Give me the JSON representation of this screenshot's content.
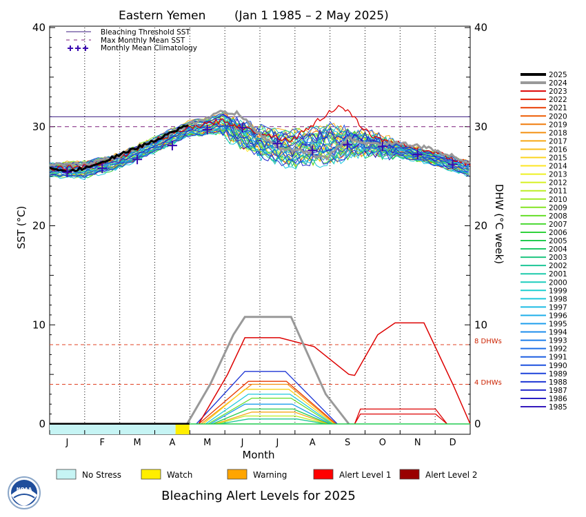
{
  "title_region": "Eastern Yemen",
  "title_range": "(Jan 1 1985 – 2 May 2025)",
  "y_left_label": "SST (°C)",
  "y_right_label": "DHW (°C week)",
  "x_label": "Month",
  "subtitle": "Bleaching Alert Levels for 2025",
  "logo_text": "NOAA",
  "legend_top": [
    {
      "label": "Bleaching Threshold SST",
      "color": "#3a1a80",
      "style": "solid"
    },
    {
      "label": "Max Monthly Mean SST",
      "color": "#7a1a7a",
      "style": "dashed"
    },
    {
      "label": "Monthly Mean Climatology",
      "color": "#3a0ab0",
      "style": "plus"
    }
  ],
  "dhw_labels": [
    "8 DHWs",
    "4 DHWs"
  ],
  "alert_key": [
    {
      "label": "No Stress",
      "color": "#c6f4f4"
    },
    {
      "label": "Watch",
      "color": "#ffee00"
    },
    {
      "label": "Warning",
      "color": "#ffa500"
    },
    {
      "label": "Alert Level 1",
      "color": "#ff0000"
    },
    {
      "label": "Alert Level 2",
      "color": "#990000"
    }
  ],
  "year_legend": [
    {
      "year": "2025",
      "color": "#000000"
    },
    {
      "year": "2024",
      "color": "#999999"
    },
    {
      "year": "2023",
      "color": "#dd0000"
    },
    {
      "year": "2022",
      "color": "#e21a00"
    },
    {
      "year": "2021",
      "color": "#e83a00"
    },
    {
      "year": "2020",
      "color": "#ee5a00"
    },
    {
      "year": "2019",
      "color": "#f07a0a"
    },
    {
      "year": "2018",
      "color": "#f49010"
    },
    {
      "year": "2017",
      "color": "#f7a814"
    },
    {
      "year": "2016",
      "color": "#f9be18"
    },
    {
      "year": "2015",
      "color": "#fbd31c"
    },
    {
      "year": "2014",
      "color": "#fce620"
    },
    {
      "year": "2013",
      "color": "#eef020"
    },
    {
      "year": "2012",
      "color": "#d6f020"
    },
    {
      "year": "2011",
      "color": "#bbee22"
    },
    {
      "year": "2010",
      "color": "#9fea22"
    },
    {
      "year": "2009",
      "color": "#82e422"
    },
    {
      "year": "2008",
      "color": "#64de26"
    },
    {
      "year": "2007",
      "color": "#48d830"
    },
    {
      "year": "2006",
      "color": "#30d23c"
    },
    {
      "year": "2005",
      "color": "#22cc50"
    },
    {
      "year": "2004",
      "color": "#1ec866"
    },
    {
      "year": "2003",
      "color": "#1cc47e"
    },
    {
      "year": "2002",
      "color": "#1cc696"
    },
    {
      "year": "2001",
      "color": "#1ccaaa"
    },
    {
      "year": "2000",
      "color": "#1ccdbe"
    },
    {
      "year": "1999",
      "color": "#1ccfd0"
    },
    {
      "year": "1998",
      "color": "#1cc8dc"
    },
    {
      "year": "1997",
      "color": "#1cbce4"
    },
    {
      "year": "1996",
      "color": "#1caeea"
    },
    {
      "year": "1995",
      "color": "#1c9eec"
    },
    {
      "year": "1994",
      "color": "#1c8eec"
    },
    {
      "year": "1993",
      "color": "#1c7eea"
    },
    {
      "year": "1992",
      "color": "#1c6ee6"
    },
    {
      "year": "1991",
      "color": "#1c5ee2"
    },
    {
      "year": "1990",
      "color": "#1c50de"
    },
    {
      "year": "1989",
      "color": "#1c42da"
    },
    {
      "year": "1988",
      "color": "#1c34d4"
    },
    {
      "year": "1987",
      "color": "#2228cc"
    },
    {
      "year": "1986",
      "color": "#2a20c4"
    },
    {
      "year": "1985",
      "color": "#3418bc"
    }
  ],
  "chart_data": {
    "type": "line",
    "title": "Eastern Yemen (Jan 1 1985 – 2 May 2025)",
    "xlabel": "Month",
    "ylabel": "SST (°C)",
    "y2label": "DHW (°C week)",
    "x_categories": [
      "J",
      "F",
      "M",
      "A",
      "M",
      "J",
      "J",
      "A",
      "S",
      "O",
      "N",
      "D"
    ],
    "ylim": [
      0,
      40
    ],
    "y2lim": [
      0,
      40
    ],
    "yticks": [
      0,
      10,
      20,
      30,
      40
    ],
    "grid": "vertical dotted at month boundaries",
    "legend_position": "top-left",
    "bleaching_threshold_sst": 31.0,
    "max_monthly_mean_sst": 30.0,
    "monthly_mean_climatology": [
      25.4,
      25.8,
      26.7,
      28.1,
      29.7,
      29.9,
      28.3,
      27.6,
      28.2,
      28.0,
      27.2,
      26.2
    ],
    "dhw_reference_lines": [
      8,
      4
    ],
    "sst_2025": {
      "day": [
        1,
        15,
        30,
        45,
        60,
        75,
        90,
        105,
        122
      ],
      "sst": [
        25.9,
        25.4,
        25.8,
        26.4,
        27.1,
        27.8,
        28.5,
        29.4,
        30.2
      ]
    },
    "sst_2024": {
      "day": [
        1,
        30,
        60,
        90,
        120,
        150,
        165,
        180,
        200,
        220,
        240,
        260,
        280,
        300,
        330,
        365
      ],
      "sst": [
        26.1,
        26.2,
        27.0,
        28.6,
        30.1,
        31.5,
        31.3,
        29.5,
        27.8,
        27.5,
        26.8,
        28.8,
        28.2,
        28.4,
        27.8,
        26.4
      ]
    },
    "sst_2023": {
      "day": [
        1,
        30,
        60,
        90,
        120,
        150,
        180,
        210,
        240,
        250,
        260,
        280,
        300,
        330,
        365
      ],
      "sst": [
        25.8,
        26.0,
        26.8,
        28.5,
        29.8,
        30.6,
        29.5,
        28.6,
        31.2,
        32.0,
        31.4,
        29.0,
        28.4,
        27.6,
        26.2
      ]
    },
    "sst_climatology_band": {
      "day": [
        1,
        30,
        60,
        90,
        120,
        150,
        180,
        210,
        240,
        270,
        300,
        330,
        365
      ],
      "sst_low": [
        25.0,
        24.8,
        25.8,
        27.3,
        29.0,
        29.3,
        27.2,
        26.0,
        26.4,
        27.3,
        27.0,
        26.3,
        25.0
      ],
      "sst_high": [
        26.3,
        26.5,
        27.2,
        28.8,
        30.5,
        31.2,
        29.8,
        29.4,
        30.0,
        29.5,
        28.4,
        27.5,
        26.5
      ]
    },
    "dhw_2024": {
      "day": [
        120,
        140,
        160,
        170,
        210,
        240,
        260
      ],
      "dhw": [
        0,
        4,
        9,
        10.8,
        10.8,
        3,
        0
      ]
    },
    "dhw_2023": {
      "day": [
        130,
        155,
        170,
        200,
        230,
        260,
        265,
        285,
        300,
        325,
        350,
        365
      ],
      "dhw": [
        0,
        5,
        8.7,
        8.7,
        7.8,
        5.0,
        4.9,
        9.0,
        10.2,
        10.2,
        4,
        0
      ]
    },
    "dhw_other_years_max": [
      5.3,
      4.3,
      4.0,
      3.5,
      3.0,
      2.6,
      2.0,
      1.5,
      1.2,
      0.8,
      0.5
    ],
    "dhw_2023_autumn_minor": [
      1.5,
      1.0
    ],
    "alert_2025": [
      {
        "status": "No Stress",
        "from_day": 1,
        "to_day": 110
      },
      {
        "status": "Watch",
        "from_day": 110,
        "to_day": 122
      }
    ]
  }
}
